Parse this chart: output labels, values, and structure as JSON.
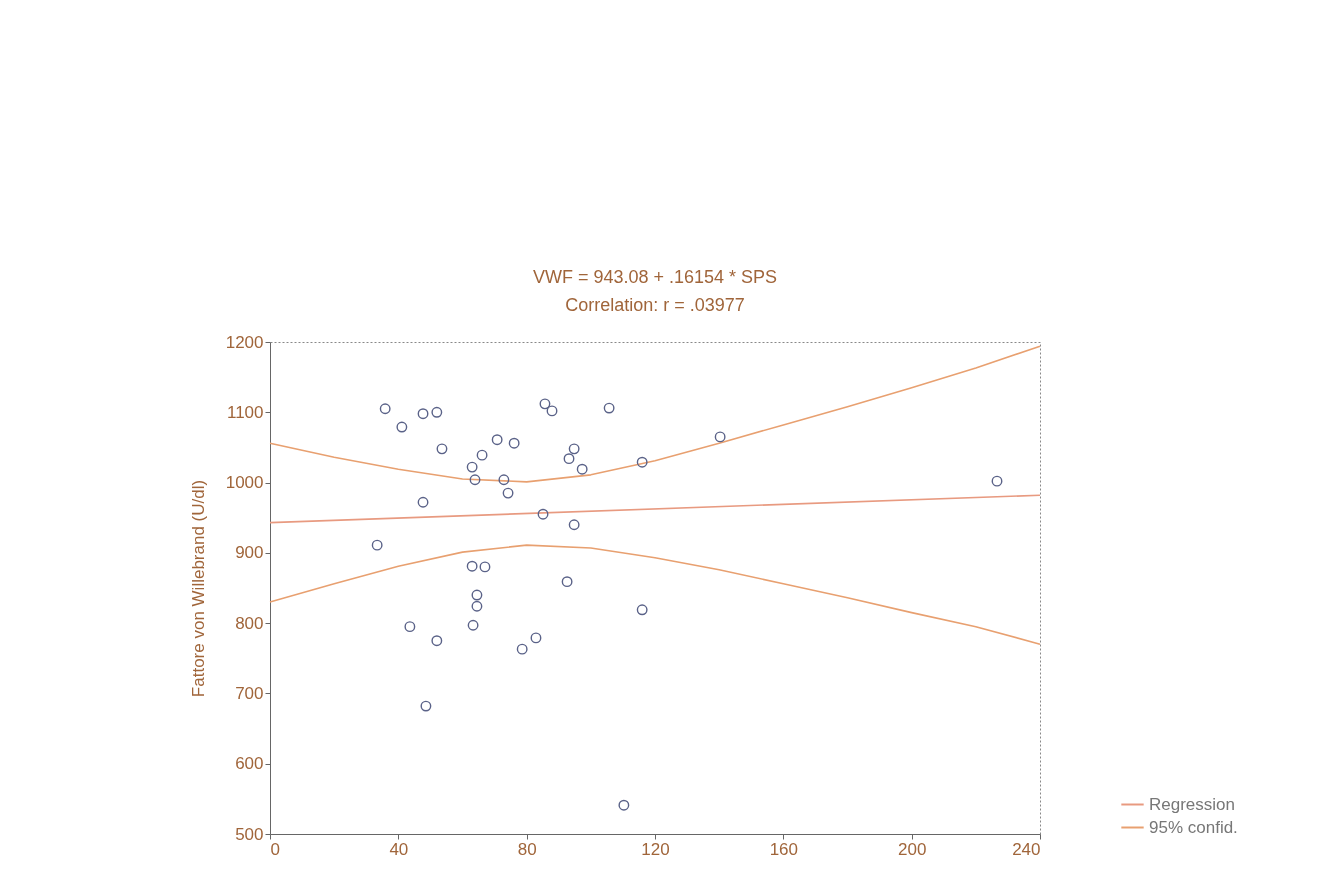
{
  "chart_data": {
    "type": "scatter",
    "title": "VWF = 943.08 + .16154 * SPS",
    "subtitle": "Correlation: r = .03977",
    "ylabel": "Fattore von Willebrand (U/dl)",
    "xlim": [
      0,
      240
    ],
    "xticks": [
      0,
      40,
      80,
      120,
      160,
      200,
      240
    ],
    "ylim": [
      500,
      1200
    ],
    "yticks": [
      500,
      600,
      700,
      800,
      900,
      1000,
      1100,
      1200
    ],
    "grid": false,
    "legend": "right",
    "series": [
      {
        "marker": "circle",
        "color": "#5a6288",
        "x": [
          35.9,
          41.1,
          47.7,
          52.0,
          53.6,
          63.0,
          63.9,
          66.1,
          70.8,
          76.1,
          72.9,
          74.2,
          85.7,
          87.9,
          105.7,
          94.8,
          93.2,
          97.3,
          116.0,
          47.7,
          85.1,
          94.8,
          33.4,
          63.0,
          67.0,
          92.6,
          64.5,
          64.5,
          63.3,
          43.6,
          52.0,
          78.6,
          82.9,
          116.0,
          48.6,
          110.3,
          140.3,
          226.6
        ],
        "values": [
          1105,
          1079,
          1098,
          1100,
          1048,
          1022,
          1004,
          1039,
          1061,
          1056,
          1004,
          985,
          1112,
          1102,
          1106,
          1048,
          1034,
          1019,
          1029,
          972,
          955,
          940,
          911,
          881,
          880,
          859,
          840,
          824,
          797,
          795,
          775,
          763,
          779,
          819,
          682,
          541,
          1065,
          1002
        ]
      },
      {
        "type": "line",
        "name": "Regression",
        "color": "#e89a80",
        "x": [
          0,
          240
        ],
        "values": [
          943,
          982
        ]
      },
      {
        "type": "line",
        "name": "95% confid.",
        "color": "#e8a070",
        "x": [
          0,
          20,
          40,
          60,
          80,
          100,
          120,
          140,
          160,
          180,
          200,
          220,
          240
        ],
        "values": [
          1056,
          1036,
          1019,
          1005,
          1001,
          1011,
          1031,
          1056,
          1082,
          1108,
          1135,
          1163,
          1194
        ]
      },
      {
        "type": "line",
        "color": "#e8a070",
        "x": [
          0,
          20,
          40,
          60,
          80,
          100,
          120,
          140,
          160,
          180,
          200,
          220,
          240
        ],
        "values": [
          830,
          856,
          881,
          901,
          911,
          907,
          893,
          876,
          856,
          836,
          815,
          795,
          770
        ]
      }
    ]
  }
}
